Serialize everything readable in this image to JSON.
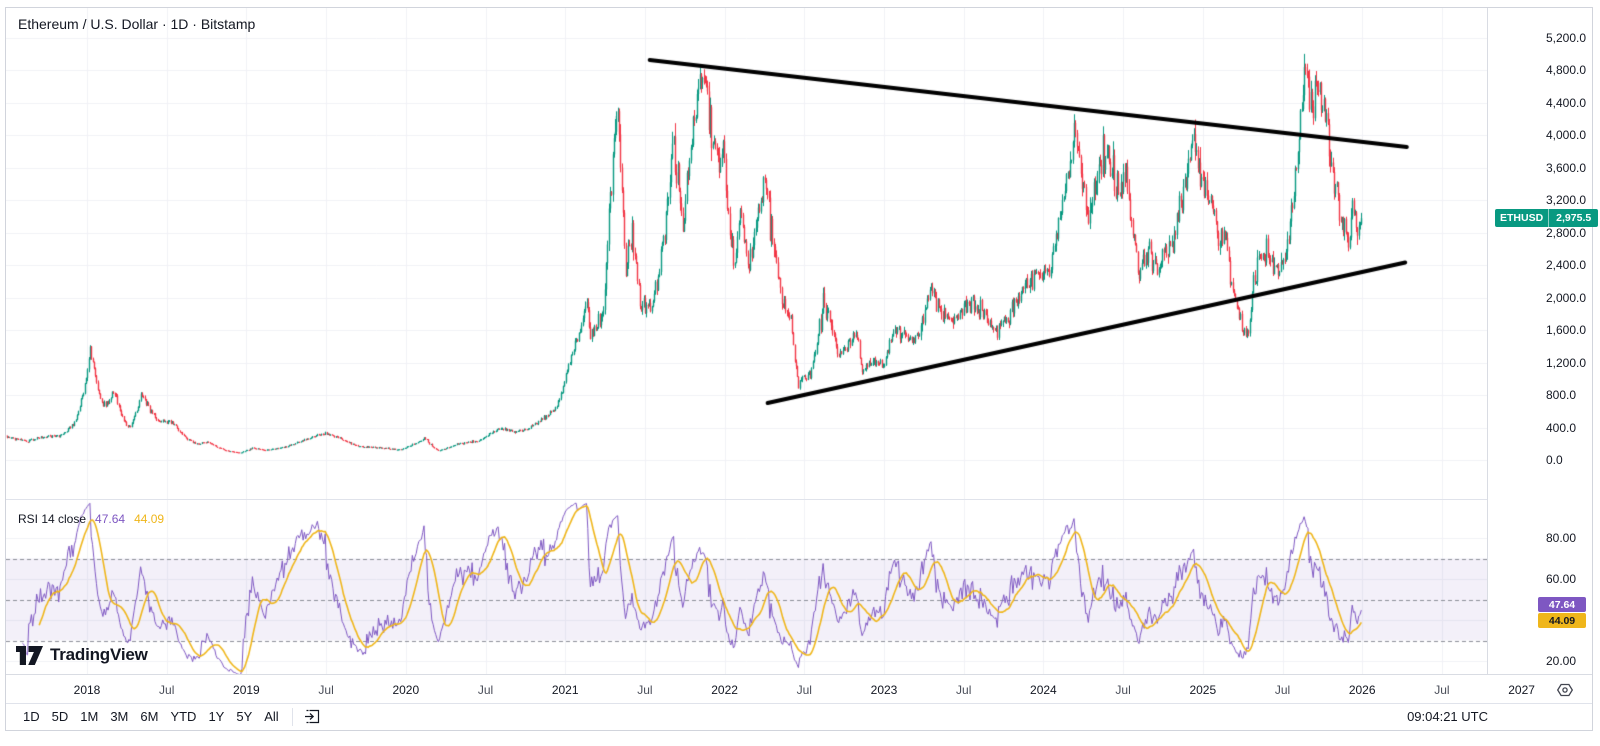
{
  "header": {
    "title": "Ethereum / U.S. Dollar · 1D · Bitstamp"
  },
  "price_badge": {
    "symbol": "ETHUSD",
    "value": "2,975.5"
  },
  "price_axis": {
    "ticks": [
      {
        "label": "5,200.0",
        "value": 5200
      },
      {
        "label": "4,800.0",
        "value": 4800
      },
      {
        "label": "4,400.0",
        "value": 4400
      },
      {
        "label": "4,000.0",
        "value": 4000
      },
      {
        "label": "3,600.0",
        "value": 3600
      },
      {
        "label": "3,200.0",
        "value": 3200
      },
      {
        "label": "2,800.0",
        "value": 2800
      },
      {
        "label": "2,400.0",
        "value": 2400
      },
      {
        "label": "2,000.0",
        "value": 2000
      },
      {
        "label": "1,600.0",
        "value": 1600
      },
      {
        "label": "1,200.0",
        "value": 1200
      },
      {
        "label": "800.0",
        "value": 800
      },
      {
        "label": "400.0",
        "value": 400
      },
      {
        "label": "0.0",
        "value": 0
      }
    ]
  },
  "rsi": {
    "legend_title": "RSI 14 close",
    "value": "47.64",
    "ma_value": "44.09",
    "axis_ticks": [
      {
        "label": "80.00",
        "value": 80
      },
      {
        "label": "60.00",
        "value": 60
      },
      {
        "label": "20.00",
        "value": 20
      }
    ]
  },
  "time_axis": {
    "labels": [
      {
        "label": "2018",
        "t": 2018,
        "major": true
      },
      {
        "label": "Jul",
        "t": 2018.5,
        "major": false
      },
      {
        "label": "2019",
        "t": 2019,
        "major": true
      },
      {
        "label": "Jul",
        "t": 2019.5,
        "major": false
      },
      {
        "label": "2020",
        "t": 2020,
        "major": true
      },
      {
        "label": "Jul",
        "t": 2020.5,
        "major": false
      },
      {
        "label": "2021",
        "t": 2021,
        "major": true
      },
      {
        "label": "Jul",
        "t": 2021.5,
        "major": false
      },
      {
        "label": "2022",
        "t": 2022,
        "major": true
      },
      {
        "label": "Jul",
        "t": 2022.5,
        "major": false
      },
      {
        "label": "2023",
        "t": 2023,
        "major": true
      },
      {
        "label": "Jul",
        "t": 2023.5,
        "major": false
      },
      {
        "label": "2024",
        "t": 2024,
        "major": true
      },
      {
        "label": "Jul",
        "t": 2024.5,
        "major": false
      },
      {
        "label": "2025",
        "t": 2025,
        "major": true
      },
      {
        "label": "Jul",
        "t": 2025.5,
        "major": false
      },
      {
        "label": "2026",
        "t": 2026,
        "major": true
      },
      {
        "label": "Jul",
        "t": 2026.5,
        "major": false
      },
      {
        "label": "2027",
        "t": 2027,
        "major": true
      }
    ]
  },
  "toolbar": {
    "ranges": [
      "1D",
      "5D",
      "1M",
      "3M",
      "6M",
      "YTD",
      "1Y",
      "5Y",
      "All"
    ],
    "time": "09:04:21 UTC"
  },
  "logo": {
    "text": "TradingView"
  },
  "icons": [
    "go-to-date-icon",
    "settings-icon",
    "tradingview-logo-icon"
  ],
  "chart_data": {
    "type": "candlestick",
    "symbol": "ETHUSD",
    "exchange": "Bitstamp",
    "interval": "1D",
    "last_price": 2975.5,
    "price_ylim": [
      0,
      5560
    ],
    "grid": true,
    "indicator": {
      "type": "line",
      "name": "RSI 14 close",
      "current": 47.64,
      "ma_current": 44.09,
      "levels": {
        "upper": 70,
        "middle": 50,
        "lower": 30
      },
      "ylim_ticks": [
        20,
        40,
        60,
        80
      ]
    },
    "price_anchors": [
      [
        2017.48,
        300
      ],
      [
        2017.62,
        230
      ],
      [
        2017.72,
        290
      ],
      [
        2017.83,
        300
      ],
      [
        2017.92,
        460
      ],
      [
        2018.02,
        1390
      ],
      [
        2018.1,
        640
      ],
      [
        2018.17,
        850
      ],
      [
        2018.26,
        380
      ],
      [
        2018.34,
        800
      ],
      [
        2018.45,
        470
      ],
      [
        2018.53,
        470
      ],
      [
        2018.62,
        270
      ],
      [
        2018.68,
        200
      ],
      [
        2018.76,
        220
      ],
      [
        2018.87,
        115
      ],
      [
        2018.96,
        90
      ],
      [
        2019.04,
        150
      ],
      [
        2019.12,
        122
      ],
      [
        2019.25,
        165
      ],
      [
        2019.37,
        255
      ],
      [
        2019.48,
        330
      ],
      [
        2019.56,
        290
      ],
      [
        2019.7,
        170
      ],
      [
        2019.83,
        150
      ],
      [
        2019.96,
        128
      ],
      [
        2020.12,
        275
      ],
      [
        2020.2,
        115
      ],
      [
        2020.33,
        200
      ],
      [
        2020.45,
        235
      ],
      [
        2020.58,
        390
      ],
      [
        2020.7,
        345
      ],
      [
        2020.83,
        460
      ],
      [
        2020.94,
        640
      ],
      [
        2021.03,
        1250
      ],
      [
        2021.08,
        1500
      ],
      [
        2021.13,
        1950
      ],
      [
        2021.16,
        1500
      ],
      [
        2021.24,
        1900
      ],
      [
        2021.28,
        3300
      ],
      [
        2021.33,
        4330
      ],
      [
        2021.38,
        2300
      ],
      [
        2021.42,
        2800
      ],
      [
        2021.47,
        1950
      ],
      [
        2021.54,
        1850
      ],
      [
        2021.6,
        2600
      ],
      [
        2021.68,
        3950
      ],
      [
        2021.74,
        2900
      ],
      [
        2021.8,
        4150
      ],
      [
        2021.86,
        4850
      ],
      [
        2021.92,
        3950
      ],
      [
        2021.99,
        3700
      ],
      [
        2022.06,
        2400
      ],
      [
        2022.1,
        3050
      ],
      [
        2022.15,
        2400
      ],
      [
        2022.25,
        3500
      ],
      [
        2022.36,
        1950
      ],
      [
        2022.41,
        1800
      ],
      [
        2022.46,
        920
      ],
      [
        2022.54,
        1100
      ],
      [
        2022.62,
        1980
      ],
      [
        2022.72,
        1320
      ],
      [
        2022.83,
        1570
      ],
      [
        2022.86,
        1100
      ],
      [
        2022.93,
        1220
      ],
      [
        2023.0,
        1195
      ],
      [
        2023.06,
        1620
      ],
      [
        2023.19,
        1420
      ],
      [
        2023.29,
        2110
      ],
      [
        2023.37,
        1810
      ],
      [
        2023.44,
        1740
      ],
      [
        2023.53,
        1930
      ],
      [
        2023.62,
        1840
      ],
      [
        2023.7,
        1590
      ],
      [
        2023.8,
        1780
      ],
      [
        2023.86,
        2050
      ],
      [
        2023.94,
        2280
      ],
      [
        2024.03,
        2280
      ],
      [
        2024.1,
        2950
      ],
      [
        2024.2,
        4070
      ],
      [
        2024.24,
        3450
      ],
      [
        2024.28,
        3000
      ],
      [
        2024.38,
        3920
      ],
      [
        2024.45,
        3400
      ],
      [
        2024.52,
        3450
      ],
      [
        2024.6,
        2250
      ],
      [
        2024.66,
        2550
      ],
      [
        2024.72,
        2350
      ],
      [
        2024.8,
        2650
      ],
      [
        2024.86,
        3150
      ],
      [
        2024.94,
        4000
      ],
      [
        2025.0,
        3350
      ],
      [
        2025.05,
        3200
      ],
      [
        2025.1,
        2700
      ],
      [
        2025.14,
        2780
      ],
      [
        2025.2,
        1950
      ],
      [
        2025.27,
        1500
      ],
      [
        2025.34,
        2400
      ],
      [
        2025.4,
        2550
      ],
      [
        2025.47,
        2300
      ],
      [
        2025.52,
        2550
      ],
      [
        2025.58,
        3480
      ],
      [
        2025.64,
        4900
      ],
      [
        2025.68,
        4280
      ],
      [
        2025.72,
        4650
      ],
      [
        2025.78,
        4000
      ],
      [
        2025.83,
        3350
      ],
      [
        2025.88,
        2880
      ],
      [
        2025.91,
        2600
      ],
      [
        2025.94,
        3200
      ],
      [
        2025.97,
        2750
      ],
      [
        2026.0,
        2975.5
      ]
    ],
    "trendlines": [
      {
        "name": "upper-descending",
        "from": [
          2021.53,
          4923
        ],
        "to": [
          2026.28,
          3852
        ]
      },
      {
        "name": "lower-ascending",
        "from": [
          2022.27,
          701
        ],
        "to": [
          2026.27,
          2431
        ]
      }
    ],
    "colors": {
      "up": "#089981",
      "down": "#F23645",
      "rsi": "#7E57C2",
      "rsi_ma": "#EFB61B",
      "trendline": "#000000",
      "grid": "#F0F2F6",
      "band_fill": "rgba(126,87,194,0.09)",
      "level_dash": "#8C8F98",
      "text": "#131722"
    }
  }
}
